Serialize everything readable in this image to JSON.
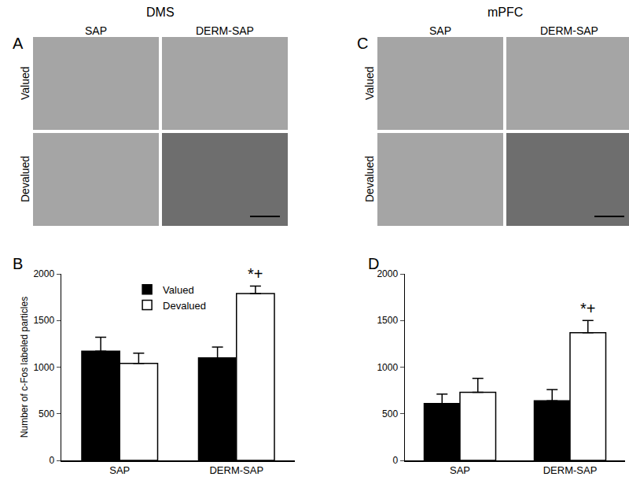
{
  "panels": [
    {
      "label": "A",
      "title": "DMS",
      "columns": [
        "SAP",
        "DERM-SAP"
      ],
      "rows": [
        "Valued",
        "Devalued"
      ]
    },
    {
      "label": "C",
      "title": "mPFC",
      "columns": [
        "SAP",
        "DERM-SAP"
      ],
      "rows": [
        "Valued",
        "Devalued"
      ]
    }
  ],
  "chart_data": [
    {
      "panel": "B",
      "type": "bar",
      "categories": [
        "SAP",
        "DERM-SAP"
      ],
      "series": [
        {
          "name": "Valued",
          "color": "#000000",
          "values": [
            1170,
            1100
          ],
          "errors": [
            150,
            115
          ]
        },
        {
          "name": "Devalued",
          "color": "#ffffff",
          "values": [
            1040,
            1790
          ],
          "errors": [
            110,
            80
          ]
        }
      ],
      "y_label": "Number of c-Fos labeled particles",
      "ylim": [
        0,
        2000
      ],
      "yticks": [
        0,
        500,
        1000,
        1500,
        2000
      ],
      "legend": "upper left",
      "annotations": [
        {
          "category": "DERM-SAP",
          "series": "Devalued",
          "text": "*+"
        }
      ]
    },
    {
      "panel": "D",
      "type": "bar",
      "categories": [
        "SAP",
        "DERM-SAP"
      ],
      "series": [
        {
          "name": "Valued",
          "color": "#000000",
          "values": [
            610,
            640
          ],
          "errors": [
            100,
            120
          ]
        },
        {
          "name": "Devalued",
          "color": "#ffffff",
          "values": [
            730,
            1370
          ],
          "errors": [
            150,
            130
          ]
        }
      ],
      "ylim": [
        0,
        2000
      ],
      "yticks": [
        0,
        500,
        1000,
        1500,
        2000
      ],
      "legend": false,
      "annotations": [
        {
          "category": "DERM-SAP",
          "series": "Devalued",
          "text": "*+"
        }
      ]
    }
  ]
}
